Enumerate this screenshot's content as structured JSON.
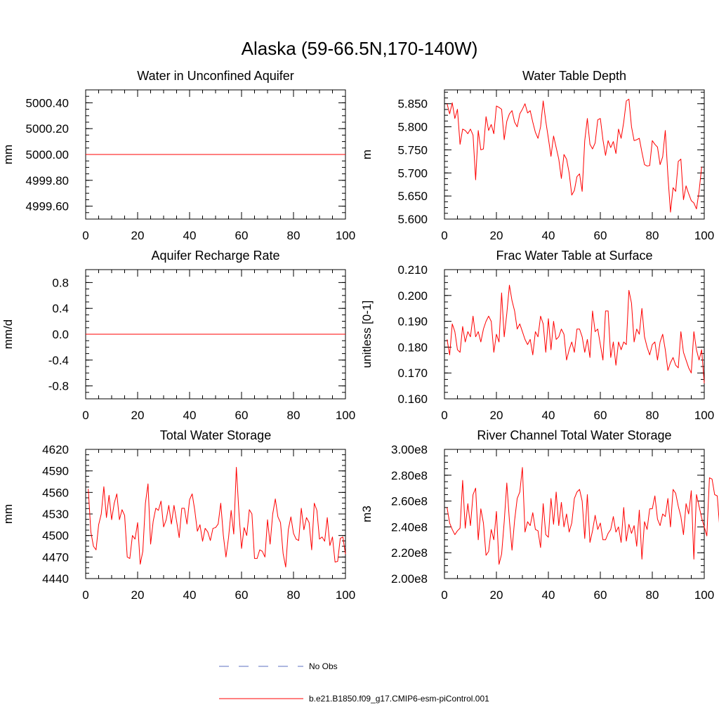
{
  "figure": {
    "title": "Alaska (59-66.5N,170-140W)",
    "series_color": "#ff0000",
    "obs_color": "#5b6fc0"
  },
  "legend": {
    "obs_label": "No Obs",
    "model_label": "b.e21.B1850.f09_g17.CMIP6-esm-piControl.001"
  },
  "chart_data": [
    {
      "type": "line",
      "title": "Water in Unconfined Aquifer",
      "ylabel": "mm",
      "xlim": [
        0,
        100
      ],
      "ylim": [
        4999.5,
        5000.5
      ],
      "xticks": [
        0,
        20,
        40,
        60,
        80,
        100
      ],
      "yticks": [
        4999.6,
        4999.8,
        5000.0,
        5000.2,
        5000.4
      ],
      "ytick_labels": [
        "4999.60",
        "4999.80",
        "5000.00",
        "5000.20",
        "5000.40"
      ],
      "x_start": 0,
      "constant": 5000.0
    },
    {
      "type": "line",
      "title": "Water Table Depth",
      "ylabel": "m",
      "xlim": [
        0,
        100
      ],
      "ylim": [
        5.6,
        5.88
      ],
      "xticks": [
        0,
        20,
        40,
        60,
        80,
        100
      ],
      "yticks": [
        5.6,
        5.65,
        5.7,
        5.75,
        5.8,
        5.85
      ],
      "ytick_labels": [
        "5.600",
        "5.650",
        "5.700",
        "5.750",
        "5.800",
        "5.850"
      ],
      "x_start": 1,
      "values": [
        5.85,
        5.828,
        5.852,
        5.818,
        5.838,
        5.762,
        5.795,
        5.792,
        5.785,
        5.795,
        5.782,
        5.685,
        5.792,
        5.75,
        5.752,
        5.822,
        5.792,
        5.805,
        5.785,
        5.845,
        5.842,
        5.838,
        5.772,
        5.812,
        5.828,
        5.835,
        5.81,
        5.8,
        5.828,
        5.838,
        5.85,
        5.83,
        5.835,
        5.81,
        5.788,
        5.775,
        5.8,
        5.856,
        5.812,
        5.775,
        5.736,
        5.78,
        5.755,
        5.73,
        5.688,
        5.74,
        5.73,
        5.7,
        5.652,
        5.662,
        5.692,
        5.698,
        5.66,
        5.77,
        5.818,
        5.762,
        5.752,
        5.765,
        5.815,
        5.818,
        5.772,
        5.738,
        5.77,
        5.755,
        5.768,
        5.742,
        5.795,
        5.775,
        5.81,
        5.856,
        5.86,
        5.8,
        5.77,
        5.772,
        5.775,
        5.745,
        5.718,
        5.715,
        5.716,
        5.77,
        5.762,
        5.756,
        5.718,
        5.735,
        5.792,
        5.695,
        5.615,
        5.668,
        5.66,
        5.725,
        5.73,
        5.642,
        5.672,
        5.655,
        5.64,
        5.635,
        5.622,
        5.66,
        5.713
      ]
    },
    {
      "type": "line",
      "title": "Aquifer Recharge Rate",
      "ylabel": "mm/d",
      "xlim": [
        0,
        100
      ],
      "ylim": [
        -1.0,
        1.0
      ],
      "xticks": [
        0,
        20,
        40,
        60,
        80,
        100
      ],
      "yticks": [
        -0.8,
        -0.4,
        0.0,
        0.4,
        0.8
      ],
      "ytick_labels": [
        "-0.8",
        "-0.4",
        "0.0",
        "0.4",
        "0.8"
      ],
      "x_start": 0,
      "constant": 0.0
    },
    {
      "type": "line",
      "title": "Frac Water Table at Surface",
      "ylabel": "unitless [0-1]",
      "xlim": [
        0,
        100
      ],
      "ylim": [
        0.16,
        0.21
      ],
      "xticks": [
        0,
        20,
        40,
        60,
        80,
        100
      ],
      "yticks": [
        0.16,
        0.17,
        0.18,
        0.19,
        0.2,
        0.21
      ],
      "ytick_labels": [
        "0.160",
        "0.170",
        "0.180",
        "0.190",
        "0.200",
        "0.210"
      ],
      "x_start": 1,
      "values": [
        0.183,
        0.177,
        0.189,
        0.186,
        0.179,
        0.178,
        0.188,
        0.182,
        0.186,
        0.184,
        0.192,
        0.184,
        0.186,
        0.182,
        0.187,
        0.19,
        0.192,
        0.19,
        0.178,
        0.185,
        0.182,
        0.201,
        0.184,
        0.193,
        0.204,
        0.198,
        0.194,
        0.187,
        0.189,
        0.186,
        0.183,
        0.181,
        0.183,
        0.177,
        0.186,
        0.184,
        0.192,
        0.189,
        0.178,
        0.191,
        0.179,
        0.19,
        0.183,
        0.184,
        0.187,
        0.185,
        0.175,
        0.179,
        0.182,
        0.178,
        0.187,
        0.187,
        0.184,
        0.178,
        0.183,
        0.176,
        0.194,
        0.186,
        0.187,
        0.181,
        0.175,
        0.194,
        0.194,
        0.176,
        0.182,
        0.173,
        0.182,
        0.179,
        0.182,
        0.181,
        0.202,
        0.197,
        0.182,
        0.187,
        0.185,
        0.195,
        0.184,
        0.18,
        0.177,
        0.181,
        0.182,
        0.175,
        0.182,
        0.185,
        0.179,
        0.171,
        0.174,
        0.176,
        0.173,
        0.172,
        0.186,
        0.178,
        0.175,
        0.172,
        0.17,
        0.186,
        0.179,
        0.175,
        0.179,
        0.166
      ]
    },
    {
      "type": "line",
      "title": "Total Water Storage",
      "ylabel": "mm",
      "xlim": [
        0,
        100
      ],
      "ylim": [
        4440,
        4620
      ],
      "xticks": [
        0,
        20,
        40,
        60,
        80,
        100
      ],
      "yticks": [
        4440,
        4470,
        4500,
        4530,
        4560,
        4590,
        4620
      ],
      "ytick_labels": [
        "4440",
        "4470",
        "4500",
        "4530",
        "4560",
        "4590",
        "4620"
      ],
      "x_start": 1,
      "values": [
        4565,
        4505,
        4485,
        4480,
        4515,
        4530,
        4568,
        4525,
        4556,
        4522,
        4545,
        4558,
        4522,
        4536,
        4528,
        4470,
        4468,
        4500,
        4495,
        4518,
        4460,
        4478,
        4545,
        4572,
        4488,
        4520,
        4538,
        4535,
        4548,
        4512,
        4522,
        4542,
        4516,
        4542,
        4520,
        4497,
        4538,
        4538,
        4516,
        4550,
        4558,
        4535,
        4506,
        4515,
        4492,
        4510,
        4505,
        4493,
        4510,
        4511,
        4516,
        4545,
        4500,
        4470,
        4497,
        4535,
        4502,
        4595,
        4532,
        4482,
        4511,
        4500,
        4536,
        4530,
        4468,
        4468,
        4480,
        4478,
        4470,
        4522,
        4488,
        4530,
        4551,
        4526,
        4518,
        4475,
        4456,
        4508,
        4526,
        4503,
        4495,
        4493,
        4538,
        4508,
        4525,
        4518,
        4480,
        4545,
        4535,
        4495,
        4498,
        4492,
        4525,
        4486,
        4498,
        4463,
        4464,
        4496,
        4498,
        4474
      ]
    },
    {
      "type": "line",
      "title": "River Channel Total Water Storage",
      "ylabel": "m3",
      "xlim": [
        0,
        100
      ],
      "ylim": [
        200000000,
        300000000
      ],
      "xticks": [
        0,
        20,
        40,
        60,
        80,
        100
      ],
      "yticks": [
        200000000,
        220000000,
        240000000,
        260000000,
        280000000,
        300000000
      ],
      "ytick_labels": [
        "2.00e8",
        "2.20e8",
        "2.40e8",
        "2.60e8",
        "2.80e8",
        "3.00e8"
      ],
      "x_start": 1,
      "values": [
        255000000,
        243000000,
        238000000,
        234000000,
        237000000,
        239000000,
        276000000,
        239000000,
        258000000,
        241000000,
        265000000,
        270000000,
        230000000,
        254000000,
        243000000,
        218000000,
        221000000,
        238000000,
        230000000,
        252000000,
        211000000,
        219000000,
        244000000,
        274000000,
        245000000,
        222000000,
        245000000,
        262000000,
        267000000,
        286000000,
        236000000,
        244000000,
        241000000,
        251000000,
        238000000,
        237000000,
        224000000,
        258000000,
        234000000,
        232000000,
        262000000,
        242000000,
        267000000,
        241000000,
        259000000,
        240000000,
        250000000,
        236000000,
        243000000,
        262000000,
        267000000,
        269000000,
        260000000,
        231000000,
        265000000,
        228000000,
        237000000,
        249000000,
        238000000,
        243000000,
        230000000,
        230000000,
        235000000,
        238000000,
        248000000,
        236000000,
        240000000,
        228000000,
        255000000,
        229000000,
        242000000,
        235000000,
        241000000,
        225000000,
        253000000,
        215000000,
        244000000,
        238000000,
        254000000,
        254000000,
        264000000,
        246000000,
        241000000,
        250000000,
        248000000,
        262000000,
        240000000,
        269000000,
        266000000,
        256000000,
        248000000,
        234000000,
        258000000,
        250000000,
        268000000,
        215000000,
        265000000,
        256000000,
        247000000,
        240000000,
        233000000,
        278000000,
        277000000,
        265000000,
        264000000,
        238000000
      ]
    }
  ]
}
